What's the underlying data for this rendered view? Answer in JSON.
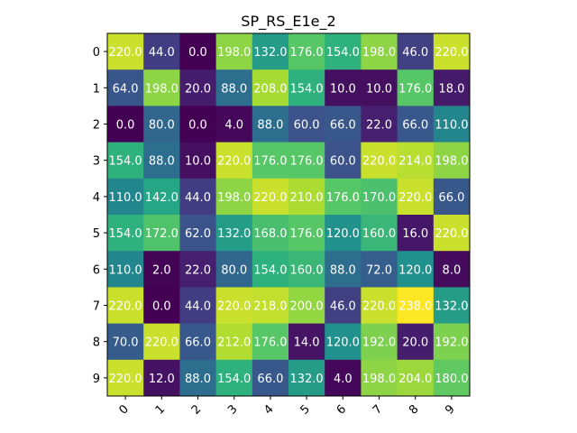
{
  "chart_data": {
    "type": "heatmap",
    "title": "SP_RS_E1e_2",
    "xlabel": "",
    "ylabel": "",
    "x_ticks": [
      "0",
      "1",
      "2",
      "3",
      "4",
      "5",
      "6",
      "7",
      "8",
      "9"
    ],
    "y_ticks": [
      "0",
      "1",
      "2",
      "3",
      "4",
      "5",
      "6",
      "7",
      "8",
      "9"
    ],
    "colormap": "viridis",
    "value_range": [
      0,
      238
    ],
    "grid": false,
    "values": [
      [
        220.0,
        44.0,
        0.0,
        198.0,
        132.0,
        176.0,
        154.0,
        198.0,
        46.0,
        220.0
      ],
      [
        64.0,
        198.0,
        20.0,
        88.0,
        208.0,
        154.0,
        10.0,
        10.0,
        176.0,
        18.0
      ],
      [
        0.0,
        80.0,
        0.0,
        4.0,
        88.0,
        60.0,
        66.0,
        22.0,
        66.0,
        110.0
      ],
      [
        154.0,
        88.0,
        10.0,
        220.0,
        176.0,
        176.0,
        60.0,
        220.0,
        214.0,
        198.0
      ],
      [
        110.0,
        142.0,
        44.0,
        198.0,
        220.0,
        210.0,
        176.0,
        170.0,
        220.0,
        66.0
      ],
      [
        154.0,
        172.0,
        62.0,
        132.0,
        168.0,
        176.0,
        120.0,
        160.0,
        16.0,
        220.0
      ],
      [
        110.0,
        2.0,
        22.0,
        80.0,
        154.0,
        160.0,
        88.0,
        72.0,
        120.0,
        8.0
      ],
      [
        220.0,
        0.0,
        44.0,
        220.0,
        218.0,
        200.0,
        46.0,
        220.0,
        238.0,
        132.0
      ],
      [
        70.0,
        220.0,
        66.0,
        212.0,
        176.0,
        14.0,
        120.0,
        192.0,
        20.0,
        192.0
      ],
      [
        220.0,
        12.0,
        88.0,
        154.0,
        66.0,
        132.0,
        4.0,
        198.0,
        204.0,
        180.0
      ]
    ]
  }
}
